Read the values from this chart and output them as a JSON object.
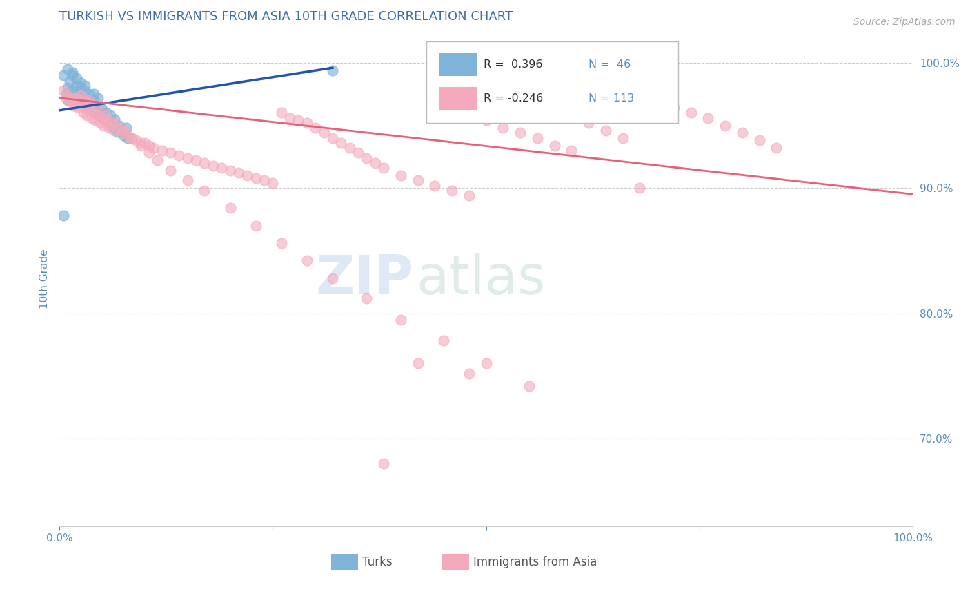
{
  "title": "TURKISH VS IMMIGRANTS FROM ASIA 10TH GRADE CORRELATION CHART",
  "source": "Source: ZipAtlas.com",
  "ylabel": "10th Grade",
  "xlim": [
    0.0,
    1.0
  ],
  "ylim": [
    0.63,
    1.025
  ],
  "yticks": [
    0.7,
    0.8,
    0.9,
    1.0
  ],
  "ytick_labels": [
    "70.0%",
    "80.0%",
    "90.0%",
    "100.0%"
  ],
  "legend_r1": "R =  0.396",
  "legend_n1": "N =  46",
  "legend_r2": "R = -0.246",
  "legend_n2": "N = 113",
  "blue_color": "#7FB3D9",
  "pink_color": "#F4AABC",
  "trend_blue": "#2255AA",
  "trend_pink": "#E8607A",
  "title_color": "#3E6DA8",
  "tick_color": "#5B8DB8",
  "watermark_zip": "ZIP",
  "watermark_atlas": "atlas",
  "turks_x": [
    0.005,
    0.008,
    0.01,
    0.01,
    0.012,
    0.015,
    0.015,
    0.018,
    0.02,
    0.02,
    0.022,
    0.025,
    0.025,
    0.028,
    0.03,
    0.03,
    0.032,
    0.035,
    0.035,
    0.038,
    0.04,
    0.04,
    0.042,
    0.045,
    0.045,
    0.048,
    0.05,
    0.052,
    0.055,
    0.058,
    0.06,
    0.062,
    0.065,
    0.068,
    0.07,
    0.075,
    0.078,
    0.08,
    0.01,
    0.015,
    0.02,
    0.025,
    0.03,
    0.32,
    0.005,
    0.04
  ],
  "turks_y": [
    0.99,
    0.975,
    0.98,
    0.97,
    0.985,
    0.978,
    0.99,
    0.972,
    0.975,
    0.982,
    0.968,
    0.972,
    0.98,
    0.966,
    0.97,
    0.978,
    0.964,
    0.968,
    0.975,
    0.966,
    0.962,
    0.97,
    0.96,
    0.965,
    0.972,
    0.958,
    0.963,
    0.955,
    0.96,
    0.952,
    0.958,
    0.948,
    0.955,
    0.945,
    0.95,
    0.942,
    0.948,
    0.94,
    0.995,
    0.992,
    0.988,
    0.984,
    0.982,
    0.994,
    0.878,
    0.975
  ],
  "asia_x": [
    0.005,
    0.008,
    0.01,
    0.012,
    0.015,
    0.015,
    0.018,
    0.02,
    0.02,
    0.022,
    0.025,
    0.025,
    0.028,
    0.03,
    0.03,
    0.032,
    0.035,
    0.035,
    0.038,
    0.04,
    0.042,
    0.045,
    0.048,
    0.05,
    0.052,
    0.055,
    0.058,
    0.06,
    0.065,
    0.07,
    0.075,
    0.08,
    0.085,
    0.09,
    0.095,
    0.1,
    0.105,
    0.11,
    0.12,
    0.13,
    0.14,
    0.15,
    0.16,
    0.17,
    0.18,
    0.19,
    0.2,
    0.21,
    0.22,
    0.23,
    0.24,
    0.25,
    0.26,
    0.27,
    0.28,
    0.29,
    0.3,
    0.31,
    0.32,
    0.33,
    0.34,
    0.35,
    0.36,
    0.37,
    0.38,
    0.4,
    0.42,
    0.44,
    0.46,
    0.48,
    0.5,
    0.52,
    0.54,
    0.56,
    0.58,
    0.6,
    0.62,
    0.64,
    0.66,
    0.68,
    0.7,
    0.72,
    0.74,
    0.76,
    0.78,
    0.8,
    0.82,
    0.84,
    0.035,
    0.045,
    0.055,
    0.065,
    0.075,
    0.085,
    0.095,
    0.105,
    0.115,
    0.13,
    0.15,
    0.17,
    0.2,
    0.23,
    0.26,
    0.29,
    0.32,
    0.36,
    0.4,
    0.45,
    0.5,
    0.55,
    0.42,
    0.48,
    0.38
  ],
  "asia_y": [
    0.978,
    0.972,
    0.974,
    0.97,
    0.966,
    0.972,
    0.968,
    0.966,
    0.972,
    0.964,
    0.968,
    0.974,
    0.96,
    0.964,
    0.97,
    0.958,
    0.962,
    0.968,
    0.956,
    0.96,
    0.954,
    0.958,
    0.952,
    0.956,
    0.95,
    0.954,
    0.948,
    0.952,
    0.946,
    0.948,
    0.944,
    0.942,
    0.94,
    0.938,
    0.936,
    0.936,
    0.934,
    0.932,
    0.93,
    0.928,
    0.926,
    0.924,
    0.922,
    0.92,
    0.918,
    0.916,
    0.914,
    0.912,
    0.91,
    0.908,
    0.906,
    0.904,
    0.96,
    0.956,
    0.954,
    0.952,
    0.948,
    0.944,
    0.94,
    0.936,
    0.932,
    0.928,
    0.924,
    0.92,
    0.916,
    0.91,
    0.906,
    0.902,
    0.898,
    0.894,
    0.954,
    0.948,
    0.944,
    0.94,
    0.934,
    0.93,
    0.952,
    0.946,
    0.94,
    0.9,
    0.97,
    0.964,
    0.96,
    0.956,
    0.95,
    0.944,
    0.938,
    0.932,
    0.97,
    0.964,
    0.958,
    0.952,
    0.946,
    0.94,
    0.934,
    0.928,
    0.922,
    0.914,
    0.906,
    0.898,
    0.884,
    0.87,
    0.856,
    0.842,
    0.828,
    0.812,
    0.795,
    0.778,
    0.76,
    0.742,
    0.76,
    0.752,
    0.68
  ]
}
